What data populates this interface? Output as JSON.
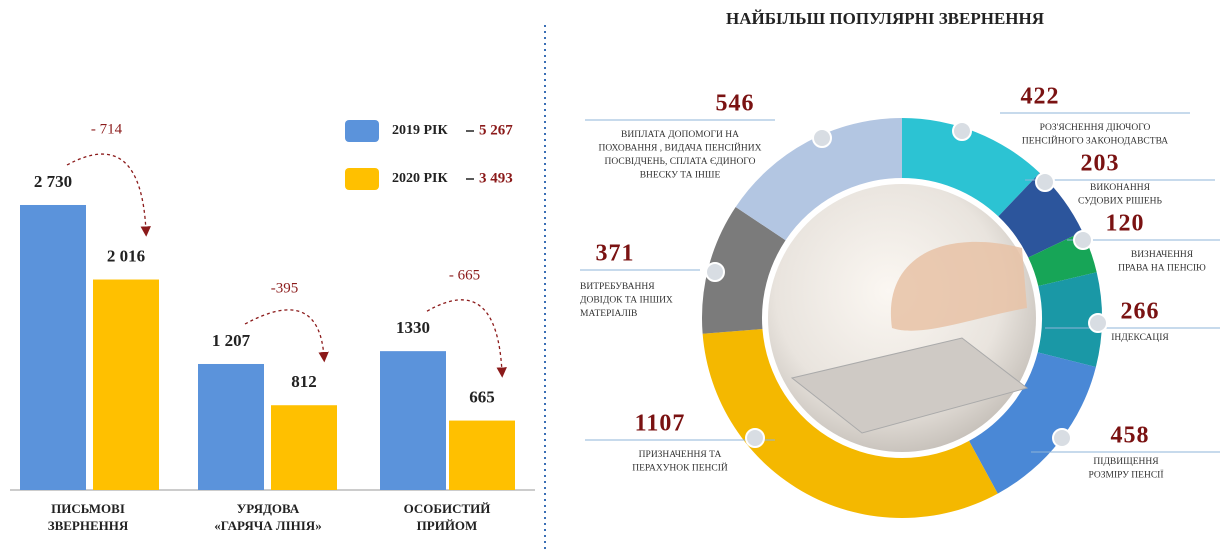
{
  "bar_chart": {
    "type": "bar",
    "categories": [
      [
        "ПИСЬМОВІ",
        "ЗВЕРНЕННЯ"
      ],
      [
        "УРЯДОВА",
        "«ГАРЯЧА ЛІНІЯ»"
      ],
      [
        "ОСОБИСТИЙ",
        "ПРИЙОМ"
      ]
    ],
    "series": [
      {
        "name": "2019 РІК",
        "total": "5 267",
        "color": "#5b93db",
        "values": [
          2730,
          1207,
          1330
        ],
        "value_labels": [
          "2 730",
          "1 207",
          "1330"
        ]
      },
      {
        "name": "2020 РІК",
        "total": "3 493",
        "color": "#ffc000",
        "values": [
          2016,
          812,
          665
        ],
        "value_labels": [
          "2 016",
          "812",
          "665"
        ]
      }
    ],
    "differences": [
      "- 714",
      "-395",
      "- 665"
    ]
  },
  "donut_chart": {
    "type": "donut",
    "title": "НАЙБІЛЬШ ПОПУЛЯРНІ ЗВЕРНЕННЯ",
    "values": [
      422,
      203,
      120,
      266,
      458,
      1107,
      371,
      546
    ],
    "colors": [
      "#2cc3d3",
      "#2c559c",
      "#17a557",
      "#1a98a6",
      "#4a88d6",
      "#f4b800",
      "#7b7b7b",
      "#b3c6e2"
    ],
    "labels": [
      [
        "РОЗ'ЯСНЕННЯ ДІЮЧОГО",
        "ПЕНСІЙНОГО ЗАКОНОДАВСТВА"
      ],
      [
        "ВИКОНАННЯ",
        "СУДОВИХ РІШЕНЬ"
      ],
      [
        "ВИЗНАЧЕННЯ",
        "ПРАВА НА ПЕНСІЮ"
      ],
      [
        "ІНДЕКСАЦІЯ"
      ],
      [
        "ПІДВИЩЕННЯ",
        "РОЗМІРУ ПЕНСІЇ"
      ],
      [
        "ПРИЗНАЧЕННЯ ТА",
        "ПЕРАХУНОК ПЕНСІЙ"
      ],
      [
        "ВИТРЕБУВАННЯ",
        "ДОВІДОК ТА ІНШИХ",
        "МАТЕРІАЛІВ"
      ],
      [
        "ВИПЛАТА ДОПОМОГИ НА",
        "ПОХОВАННЯ , ВИДАЧА ПЕНСІЙНИХ",
        "ПОСВІДЧЕНЬ, СПЛАТА ЄДИНОГО",
        "ВНЕСКУ ТА ІНШЕ"
      ]
    ]
  }
}
